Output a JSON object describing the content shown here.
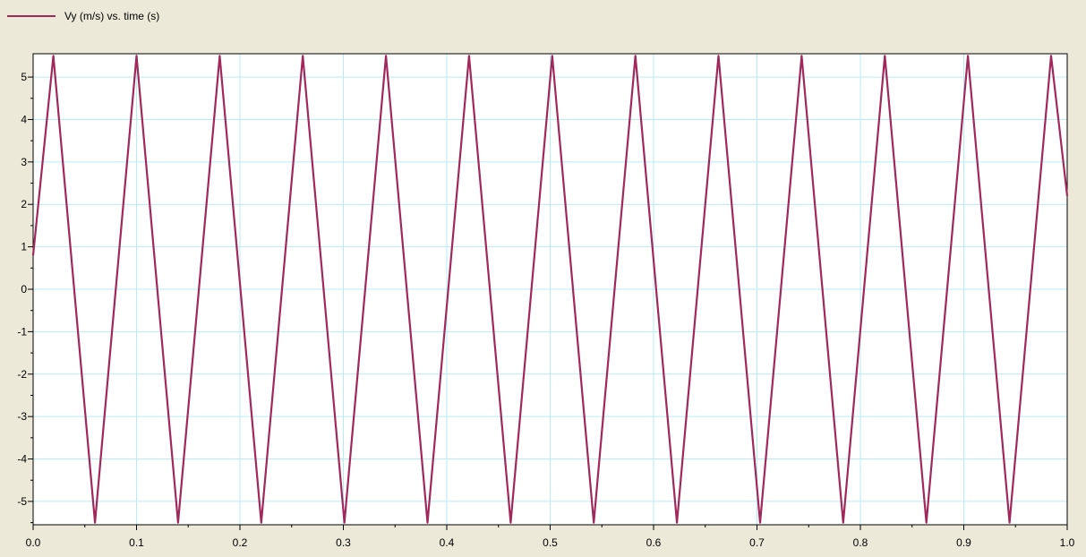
{
  "chart_data": {
    "type": "line",
    "title": "",
    "legend": {
      "placement": "top-left",
      "entries": [
        {
          "label": "Vy (m/s)   vs. time (s)",
          "color": "#a0285a"
        }
      ]
    },
    "xlabel": "",
    "ylabel": "",
    "xlim": [
      0.0,
      1.0
    ],
    "ylim": [
      -5.55,
      5.55
    ],
    "grid": true,
    "x_ticks": [
      "0.0",
      "0.1",
      "0.2",
      "0.3",
      "0.4",
      "0.5",
      "0.6",
      "0.7",
      "0.8",
      "0.9",
      "1.0"
    ],
    "y_ticks": [
      "5",
      "4",
      "3",
      "2",
      "1",
      "0",
      "-1",
      "-2",
      "-3",
      "-4",
      "-5"
    ],
    "series": [
      {
        "color": "#a0285a",
        "x": [
          0.0,
          0.0196,
          0.0598,
          0.1,
          0.1402,
          0.1804,
          0.2206,
          0.2608,
          0.301,
          0.3412,
          0.3814,
          0.4216,
          0.4618,
          0.502,
          0.5422,
          0.5824,
          0.6226,
          0.6628,
          0.703,
          0.7432,
          0.7834,
          0.8236,
          0.8638,
          0.904,
          0.9442,
          0.9844,
          1.0
        ],
        "y": [
          0.8,
          5.5,
          -5.5,
          5.5,
          -5.5,
          5.5,
          -5.5,
          5.5,
          -5.5,
          5.5,
          -5.5,
          5.5,
          -5.5,
          5.5,
          -5.5,
          5.5,
          -5.5,
          5.5,
          -5.5,
          5.5,
          -5.5,
          5.5,
          -5.5,
          5.5,
          -5.5,
          5.5,
          2.2
        ]
      }
    ]
  }
}
